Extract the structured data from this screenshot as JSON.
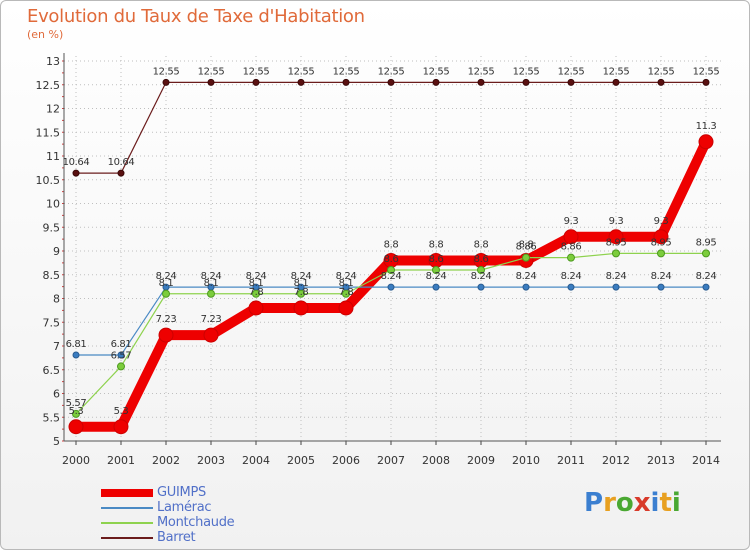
{
  "title": "Evolution du Taux de Taxe d'Habitation",
  "subtitle": "(en %)",
  "brand": "Proxiti",
  "colors": {
    "title": "#e06a3a",
    "legend_text": "#5170c8",
    "grid": "#bfbfbf"
  },
  "chart_data": {
    "type": "line",
    "title": "Evolution du Taux de Taxe d'Habitation",
    "ylabel": "(en %)",
    "xlabel": "",
    "x": [
      "2000",
      "2001",
      "2002",
      "2003",
      "2004",
      "2005",
      "2006",
      "2007",
      "2008",
      "2009",
      "2010",
      "2011",
      "2012",
      "2013",
      "2014"
    ],
    "y_ticks": [
      "5",
      "5.5",
      "6",
      "6.5",
      "7",
      "7.5",
      "8",
      "8.5",
      "9",
      "9.5",
      "10",
      "10.5",
      "11",
      "11.5",
      "12",
      "12.5",
      "13"
    ],
    "ylim": [
      5,
      13
    ],
    "legend_position": "bottom-left",
    "series": [
      {
        "name": "GUIMPS",
        "color": "#ee0000",
        "values": [
          5.3,
          5.3,
          7.23,
          7.23,
          7.8,
          7.8,
          7.8,
          8.8,
          8.8,
          8.8,
          8.8,
          9.3,
          9.3,
          9.3,
          11.3
        ],
        "labels": [
          "5.3",
          "5.3",
          "7.23",
          "7.23",
          "7.8",
          "7.8",
          "7.8",
          "8.8",
          "8.8",
          "8.8",
          "8.8",
          "9.3",
          "9.3",
          "9.3",
          "11.3"
        ]
      },
      {
        "name": "Lamérac",
        "color": "#4a8ac4",
        "values": [
          6.81,
          6.81,
          8.24,
          8.24,
          8.24,
          8.24,
          8.24,
          8.24,
          8.24,
          8.24,
          8.24,
          8.24,
          8.24,
          8.24,
          8.24
        ],
        "labels": [
          "6.81",
          "6.81",
          "8.24",
          "8.24",
          "8.24",
          "8.24",
          "8.24",
          "8.24",
          "8.24",
          "8.24",
          "8.24",
          "8.24",
          "8.24",
          "8.24",
          "8.24"
        ]
      },
      {
        "name": "Montchaude",
        "color": "#8ed24e",
        "values": [
          5.57,
          6.57,
          8.1,
          8.1,
          8.1,
          8.1,
          8.1,
          8.6,
          8.6,
          8.6,
          8.86,
          8.86,
          8.95,
          8.95,
          8.95
        ],
        "labels": [
          "5.57",
          "6.57",
          "8.1",
          "8.1",
          "8.1",
          "8.1",
          "8.1",
          "8.6",
          "8.6",
          "8.6",
          "8.86",
          "8.86",
          "8.95",
          "8.95",
          "8.95"
        ]
      },
      {
        "name": "Barret",
        "color": "#6b1c1c",
        "values": [
          10.64,
          10.64,
          12.55,
          12.55,
          12.55,
          12.55,
          12.55,
          12.55,
          12.55,
          12.55,
          12.55,
          12.55,
          12.55,
          12.55,
          12.55
        ],
        "labels": [
          "10.64",
          "10.64",
          "12.55",
          "12.55",
          "12.55",
          "12.55",
          "12.55",
          "12.55",
          "12.55",
          "12.55",
          "12.55",
          "12.55",
          "12.55",
          "12.55",
          "12.55"
        ]
      }
    ]
  }
}
